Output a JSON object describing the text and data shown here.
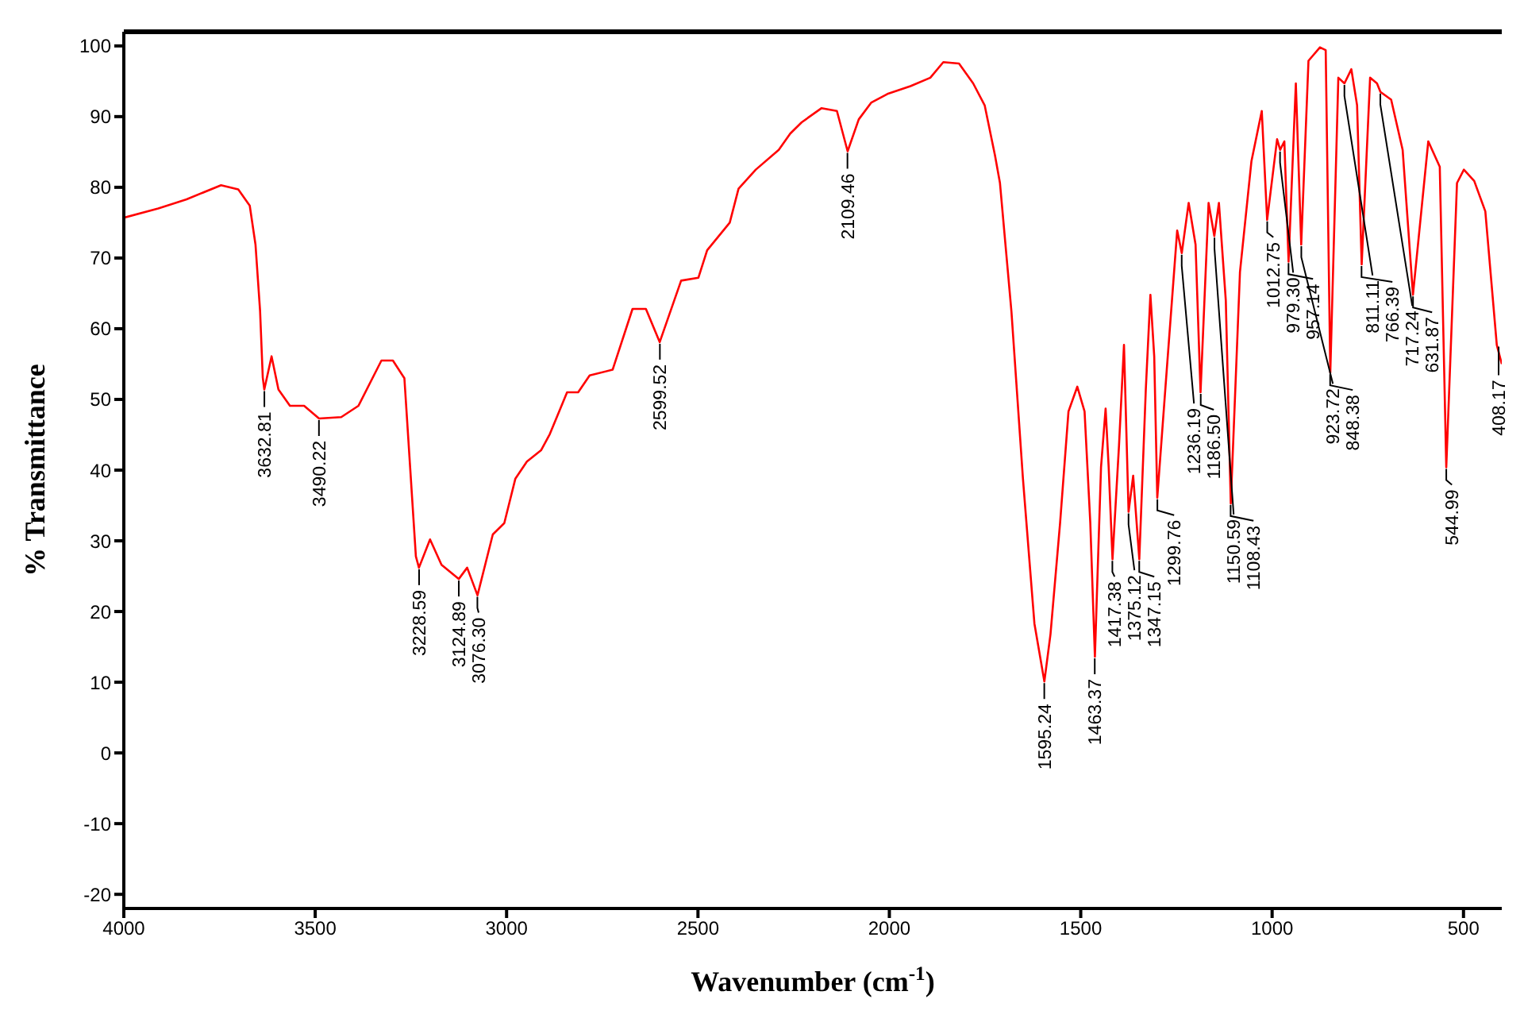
{
  "chart_data": {
    "type": "line",
    "xlabel": "Wavenumber (cm$^{-1}$)",
    "ylabel": "% Transmittance",
    "xlim": [
      4000,
      400
    ],
    "ylim": [
      -22,
      102
    ],
    "xticks": [
      4000,
      3500,
      3000,
      2500,
      2000,
      1500,
      1000,
      500
    ],
    "yticks": [
      -20,
      -10,
      0,
      10,
      20,
      30,
      40,
      50,
      60,
      70,
      80,
      90,
      100
    ],
    "grid": false,
    "legend": false,
    "series": [
      {
        "color": "#ff0000",
        "x": [
          4000,
          3910,
          3836,
          3746,
          3701,
          3671,
          3656,
          3644,
          3637,
          3633,
          3614,
          3596,
          3566,
          3529,
          3490,
          3432,
          3387,
          3327,
          3297,
          3267,
          3252,
          3237,
          3229,
          3200,
          3170,
          3125,
          3103,
          3076,
          3036,
          3006,
          2977,
          2947,
          2910,
          2887,
          2842,
          2813,
          2783,
          2723,
          2671,
          2636,
          2600,
          2544,
          2499,
          2476,
          2417,
          2394,
          2349,
          2289,
          2259,
          2229,
          2177,
          2137,
          2109,
          2080,
          2047,
          2005,
          1945,
          1893,
          1859,
          1818,
          1781,
          1751,
          1724,
          1711,
          1681,
          1651,
          1621,
          1595,
          1579,
          1554,
          1532,
          1509,
          1490,
          1475,
          1463,
          1447,
          1435,
          1427,
          1417,
          1400,
          1387,
          1375,
          1363,
          1347,
          1330,
          1318,
          1308,
          1300,
          1278,
          1248,
          1236,
          1218,
          1200,
          1187,
          1166,
          1151,
          1139,
          1121,
          1108,
          1084,
          1054,
          1027,
          1013,
          987,
          979,
          968,
          957,
          938,
          924,
          905,
          875,
          860,
          848,
          827,
          811,
          793,
          778,
          766,
          744,
          726,
          717,
          689,
          659,
          632,
          592,
          562,
          545,
          517,
          499,
          472,
          443,
          413,
          400
        ],
        "values": [
          75.7,
          77.0,
          78.3,
          80.3,
          79.7,
          77.4,
          71.9,
          62.5,
          53.1,
          51.4,
          56.1,
          51.4,
          49.1,
          49.1,
          47.3,
          47.5,
          49.1,
          55.5,
          55.5,
          53.0,
          40.4,
          27.8,
          26.2,
          30.2,
          26.6,
          24.6,
          26.2,
          22.3,
          30.9,
          32.5,
          38.8,
          41.2,
          42.8,
          45.1,
          51.0,
          51.0,
          53.4,
          54.2,
          62.8,
          62.8,
          58.1,
          66.8,
          67.2,
          71.1,
          75.0,
          79.8,
          82.5,
          85.3,
          87.6,
          89.2,
          91.2,
          90.8,
          85.1,
          89.6,
          92.0,
          93.2,
          94.3,
          95.5,
          97.7,
          97.5,
          94.7,
          91.6,
          84.5,
          80.6,
          62.4,
          38.8,
          18.3,
          10.1,
          16.8,
          32.5,
          48.3,
          51.8,
          48.3,
          32.5,
          13.6,
          40.4,
          48.7,
          40.4,
          27.4,
          43.5,
          57.7,
          34.1,
          39.2,
          27.4,
          51.4,
          64.8,
          56.1,
          36.1,
          52.2,
          73.9,
          70.7,
          77.8,
          71.9,
          51.0,
          77.8,
          73.1,
          77.8,
          64.0,
          35.3,
          68.0,
          83.7,
          90.8,
          75.4,
          86.8,
          85.3,
          86.5,
          69.5,
          94.7,
          71.9,
          97.9,
          99.8,
          99.4,
          53.8,
          95.5,
          94.7,
          96.7,
          91.6,
          69.1,
          95.5,
          94.7,
          93.5,
          92.4,
          85.3,
          64.8,
          86.5,
          82.9,
          40.4,
          80.6,
          82.5,
          80.9,
          76.6,
          57.7,
          55.0
        ]
      }
    ],
    "annotations": [
      {
        "text": "3632.81",
        "x": 3632.81,
        "y": 51.4
      },
      {
        "text": "3490.22",
        "x": 3490.22,
        "y": 47.3
      },
      {
        "text": "3228.59",
        "x": 3228.59,
        "y": 26.2
      },
      {
        "text": "3124.89",
        "x": 3124.89,
        "y": 24.6
      },
      {
        "text": "3076.30",
        "x": 3076.3,
        "y": 22.3
      },
      {
        "text": "2599.52",
        "x": 2599.52,
        "y": 58.1
      },
      {
        "text": "2109.46",
        "x": 2109.46,
        "y": 85.1
      },
      {
        "text": "1595.24",
        "x": 1595.24,
        "y": 10.1
      },
      {
        "text": "1463.37",
        "x": 1463.37,
        "y": 13.6
      },
      {
        "text": "1417.38",
        "x": 1417.38,
        "y": 27.4
      },
      {
        "text": "1375.12",
        "x": 1375.12,
        "y": 34.1
      },
      {
        "text": "1347.15",
        "x": 1347.15,
        "y": 27.4
      },
      {
        "text": "1299.76",
        "x": 1299.76,
        "y": 36.1
      },
      {
        "text": "1236.19",
        "x": 1236.19,
        "y": 70.7
      },
      {
        "text": "1186.50",
        "x": 1186.5,
        "y": 51.0
      },
      {
        "text": "1150.59",
        "x": 1150.59,
        "y": 73.1
      },
      {
        "text": "1108.43",
        "x": 1108.43,
        "y": 35.3
      },
      {
        "text": "1012.75",
        "x": 1012.75,
        "y": 75.4
      },
      {
        "text": "979.30",
        "x": 979.3,
        "y": 85.3
      },
      {
        "text": "957.14",
        "x": 957.14,
        "y": 69.5
      },
      {
        "text": "923.72",
        "x": 923.72,
        "y": 71.9
      },
      {
        "text": "848.38",
        "x": 848.38,
        "y": 53.8
      },
      {
        "text": "811.11",
        "x": 811.11,
        "y": 94.7
      },
      {
        "text": "766.39",
        "x": 766.39,
        "y": 69.1
      },
      {
        "text": "717.24",
        "x": 717.24,
        "y": 93.5
      },
      {
        "text": "631.87",
        "x": 631.87,
        "y": 64.8
      },
      {
        "text": "544.99",
        "x": 544.99,
        "y": 40.4
      },
      {
        "text": "408.17",
        "x": 408.17,
        "y": 57.7
      }
    ]
  }
}
